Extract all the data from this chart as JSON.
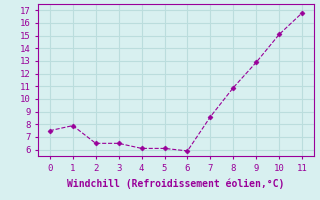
{
  "x": [
    0,
    1,
    2,
    3,
    4,
    5,
    6,
    7,
    8,
    9,
    10,
    11
  ],
  "y": [
    7.5,
    7.9,
    6.5,
    6.5,
    6.1,
    6.1,
    5.9,
    8.6,
    10.9,
    12.9,
    15.1,
    16.8
  ],
  "line_color": "#990099",
  "marker": "D",
  "marker_size": 2.5,
  "xlabel": "Windchill (Refroidissement éolien,°C)",
  "xlim": [
    -0.5,
    11.5
  ],
  "ylim": [
    5.5,
    17.5
  ],
  "yticks": [
    6,
    7,
    8,
    9,
    10,
    11,
    12,
    13,
    14,
    15,
    16,
    17
  ],
  "xticks": [
    0,
    1,
    2,
    3,
    4,
    5,
    6,
    7,
    8,
    9,
    10,
    11
  ],
  "bg_color": "#d8f0f0",
  "grid_color": "#bbdddd",
  "xlabel_color": "#990099",
  "tick_color": "#990099",
  "tick_fontsize": 6.5,
  "xlabel_fontsize": 7
}
